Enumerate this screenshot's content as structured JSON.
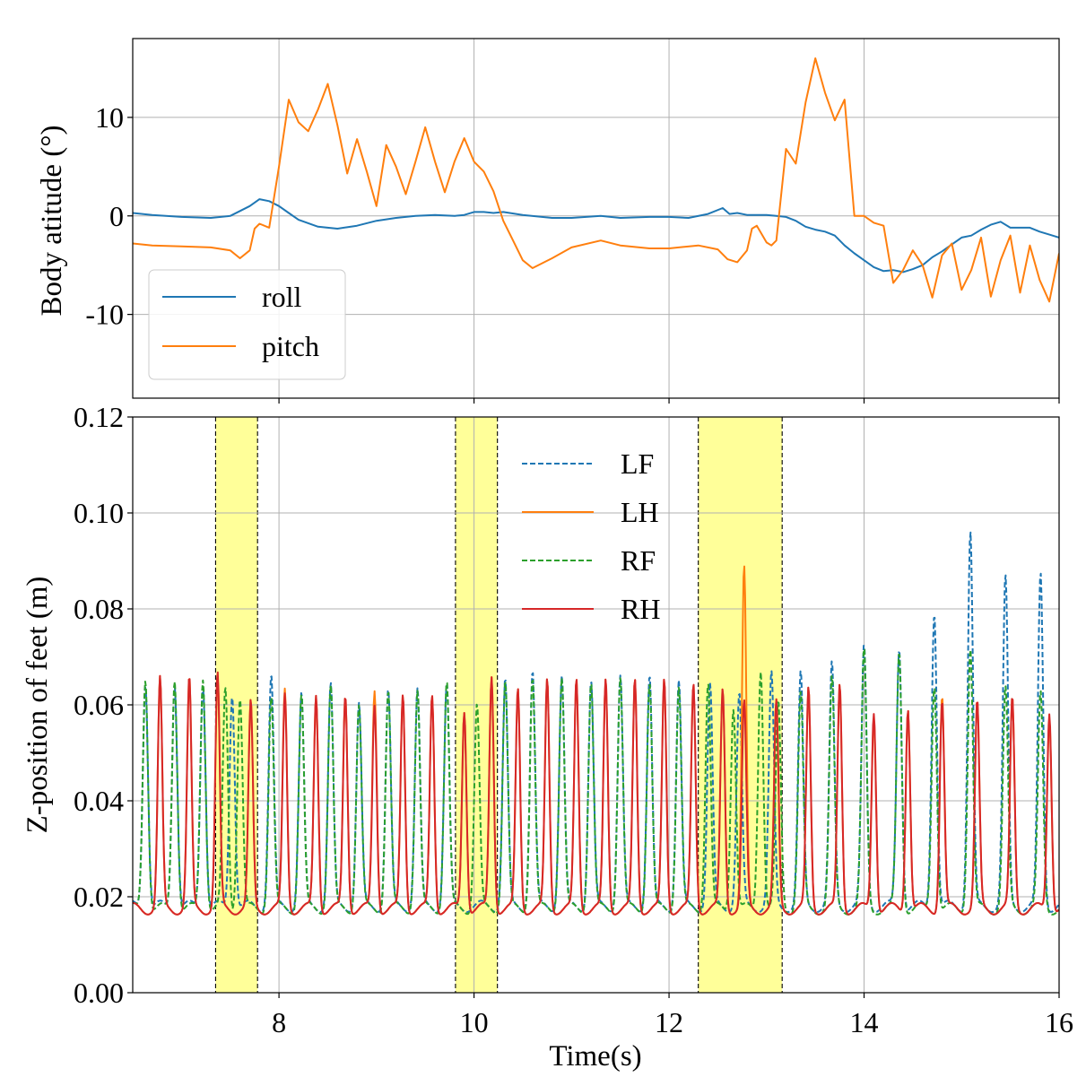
{
  "chart_data": [
    {
      "type": "line",
      "id": "attitude",
      "ylabel": "Body atitude (°)",
      "xlabel": "",
      "xlim": [
        6.5,
        16
      ],
      "ylim": [
        -18.5,
        18
      ],
      "xticks": [
        8,
        10,
        12,
        14,
        16
      ],
      "yticks": [
        -10,
        0,
        10
      ],
      "ytick_labels": [
        "-10",
        "0",
        "10"
      ],
      "grid": true,
      "legend": "lower-left",
      "series": [
        {
          "name": "roll",
          "color": "#1f77b4",
          "style": "solid",
          "x": [
            6.5,
            6.7,
            7.0,
            7.3,
            7.5,
            7.6,
            7.7,
            7.8,
            7.9,
            8.0,
            8.1,
            8.2,
            8.4,
            8.6,
            8.8,
            9.0,
            9.2,
            9.4,
            9.6,
            9.8,
            9.9,
            10.0,
            10.1,
            10.2,
            10.3,
            10.5,
            10.8,
            11.0,
            11.3,
            11.5,
            11.8,
            12.0,
            12.2,
            12.4,
            12.55,
            12.62,
            12.7,
            12.8,
            12.9,
            13.0,
            13.1,
            13.2,
            13.3,
            13.4,
            13.5,
            13.6,
            13.7,
            13.8,
            13.9,
            14.0,
            14.1,
            14.2,
            14.3,
            14.4,
            14.5,
            14.6,
            14.7,
            14.8,
            14.9,
            15.0,
            15.1,
            15.2,
            15.3,
            15.4,
            15.5,
            15.6,
            15.7,
            15.8,
            15.9,
            16.0
          ],
          "y": [
            0.3,
            0.1,
            -0.1,
            -0.2,
            0.0,
            0.5,
            1.0,
            1.7,
            1.5,
            1.0,
            0.3,
            -0.4,
            -1.1,
            -1.3,
            -1.0,
            -0.5,
            -0.2,
            0.0,
            0.1,
            0.0,
            0.1,
            0.4,
            0.4,
            0.3,
            0.4,
            0.1,
            -0.2,
            -0.2,
            0.0,
            -0.2,
            -0.1,
            -0.1,
            -0.2,
            0.2,
            0.8,
            0.2,
            0.3,
            0.1,
            0.1,
            0.1,
            0.0,
            -0.1,
            -0.5,
            -1.1,
            -1.4,
            -1.6,
            -2.0,
            -3.0,
            -3.8,
            -4.5,
            -5.2,
            -5.6,
            -5.5,
            -5.7,
            -5.4,
            -5.0,
            -4.2,
            -3.6,
            -2.9,
            -2.2,
            -2.0,
            -1.4,
            -0.9,
            -0.6,
            -1.2,
            -1.2,
            -1.2,
            -1.6,
            -1.9,
            -2.2
          ]
        },
        {
          "name": "pitch",
          "color": "#ff7f0e",
          "style": "solid",
          "x": [
            6.5,
            6.7,
            7.0,
            7.3,
            7.5,
            7.6,
            7.7,
            7.75,
            7.8,
            7.9,
            8.0,
            8.1,
            8.2,
            8.3,
            8.4,
            8.5,
            8.6,
            8.7,
            8.8,
            8.9,
            9.0,
            9.1,
            9.2,
            9.3,
            9.4,
            9.5,
            9.6,
            9.7,
            9.8,
            9.9,
            10.0,
            10.1,
            10.2,
            10.3,
            10.4,
            10.5,
            10.6,
            10.8,
            11.0,
            11.3,
            11.5,
            11.8,
            12.0,
            12.3,
            12.5,
            12.6,
            12.7,
            12.8,
            12.85,
            12.9,
            13.0,
            13.05,
            13.1,
            13.2,
            13.3,
            13.4,
            13.5,
            13.6,
            13.7,
            13.8,
            13.9,
            14.0,
            14.1,
            14.2,
            14.3,
            14.4,
            14.5,
            14.6,
            14.7,
            14.8,
            14.9,
            15.0,
            15.1,
            15.2,
            15.3,
            15.4,
            15.5,
            15.6,
            15.7,
            15.8,
            15.9,
            16.0
          ],
          "y": [
            -2.8,
            -3.0,
            -3.1,
            -3.2,
            -3.5,
            -4.3,
            -3.5,
            -1.3,
            -0.8,
            -1.2,
            5.0,
            11.8,
            9.5,
            8.6,
            10.8,
            13.4,
            9.2,
            4.3,
            7.8,
            4.5,
            1.0,
            7.2,
            5.0,
            2.2,
            5.5,
            9.0,
            5.5,
            2.4,
            5.5,
            7.9,
            5.5,
            4.5,
            2.5,
            -0.5,
            -2.5,
            -4.5,
            -5.3,
            -4.3,
            -3.2,
            -2.5,
            -3.0,
            -3.3,
            -3.3,
            -3.0,
            -3.4,
            -4.4,
            -4.7,
            -3.5,
            -1.3,
            -1.0,
            -2.7,
            -3.0,
            -2.5,
            6.8,
            5.3,
            11.5,
            16.0,
            12.5,
            9.7,
            11.8,
            0.0,
            0.0,
            -0.7,
            -1.0,
            -6.8,
            -5.5,
            -3.5,
            -5.0,
            -8.3,
            -4.0,
            -2.8,
            -7.5,
            -5.5,
            -2.2,
            -8.2,
            -4.5,
            -2.0,
            -7.8,
            -3.0,
            -6.5,
            -8.7,
            -3.8
          ]
        }
      ]
    },
    {
      "type": "line",
      "id": "feet",
      "ylabel": "Z-position of feet (m)",
      "xlabel": "Time(s)",
      "xlim": [
        6.5,
        16
      ],
      "ylim": [
        0.0,
        0.12
      ],
      "xticks": [
        8,
        10,
        12,
        14,
        16
      ],
      "yticks": [
        0.0,
        0.02,
        0.04,
        0.06,
        0.08,
        0.1,
        0.12
      ],
      "ytick_labels": [
        "0.00",
        "0.02",
        "0.04",
        "0.06",
        "0.08",
        "0.10",
        "0.12"
      ],
      "grid": true,
      "legend": "upper-center",
      "shaded_regions": [
        [
          7.35,
          7.78
        ],
        [
          9.81,
          10.24
        ],
        [
          12.3,
          13.16
        ]
      ],
      "shade_color": "#ffff99",
      "series": [
        {
          "name": "LF",
          "color": "#1f77b4",
          "style": "dashed",
          "base": 0.018,
          "width": 0.1,
          "peaks": [
            [
              6.63,
              0.065
            ],
            [
              6.93,
              0.065
            ],
            [
              7.22,
              0.065
            ],
            [
              7.52,
              0.063
            ],
            [
              7.92,
              0.066
            ],
            [
              8.23,
              0.062
            ],
            [
              8.53,
              0.064
            ],
            [
              8.82,
              0.06
            ],
            [
              9.12,
              0.063
            ],
            [
              9.42,
              0.063
            ],
            [
              9.72,
              0.064
            ],
            [
              10.32,
              0.065
            ],
            [
              10.6,
              0.067
            ],
            [
              10.9,
              0.066
            ],
            [
              11.2,
              0.065
            ],
            [
              11.5,
              0.066
            ],
            [
              11.8,
              0.066
            ],
            [
              12.1,
              0.065
            ],
            [
              12.42,
              0.064
            ],
            [
              12.72,
              0.062
            ],
            [
              13.05,
              0.066
            ],
            [
              13.35,
              0.066
            ],
            [
              13.67,
              0.068
            ],
            [
              14.0,
              0.072
            ],
            [
              14.36,
              0.072
            ],
            [
              14.72,
              0.08
            ],
            [
              15.09,
              0.096
            ],
            [
              15.45,
              0.086
            ],
            [
              15.81,
              0.087
            ]
          ]
        },
        {
          "name": "LH",
          "color": "#ff7f0e",
          "style": "solid",
          "base": 0.0175,
          "width": 0.085,
          "peaks": [
            [
              6.78,
              0.065
            ],
            [
              7.08,
              0.065
            ],
            [
              7.37,
              0.065
            ],
            [
              7.71,
              0.06
            ],
            [
              8.06,
              0.063
            ],
            [
              8.38,
              0.062
            ],
            [
              8.68,
              0.062
            ],
            [
              8.98,
              0.063
            ],
            [
              9.27,
              0.062
            ],
            [
              9.57,
              0.062
            ],
            [
              9.9,
              0.059
            ],
            [
              10.18,
              0.066
            ],
            [
              10.45,
              0.063
            ],
            [
              10.75,
              0.065
            ],
            [
              11.05,
              0.065
            ],
            [
              11.35,
              0.065
            ],
            [
              11.65,
              0.065
            ],
            [
              11.95,
              0.065
            ],
            [
              12.25,
              0.064
            ],
            [
              12.55,
              0.063
            ],
            [
              12.77,
              0.088
            ],
            [
              13.1,
              0.06
            ],
            [
              13.43,
              0.063
            ],
            [
              13.75,
              0.064
            ],
            [
              14.1,
              0.058
            ],
            [
              14.45,
              0.06
            ],
            [
              14.8,
              0.062
            ],
            [
              15.16,
              0.06
            ],
            [
              15.52,
              0.061
            ],
            [
              15.9,
              0.058
            ]
          ]
        },
        {
          "name": "RF",
          "color": "#2ca02c",
          "style": "dashed",
          "base": 0.0175,
          "width": 0.1,
          "peaks": [
            [
              6.63,
              0.066
            ],
            [
              6.93,
              0.066
            ],
            [
              7.22,
              0.066
            ],
            [
              7.45,
              0.063
            ],
            [
              7.6,
              0.062
            ],
            [
              7.92,
              0.062
            ],
            [
              8.23,
              0.062
            ],
            [
              8.53,
              0.064
            ],
            [
              8.82,
              0.06
            ],
            [
              9.12,
              0.063
            ],
            [
              9.42,
              0.063
            ],
            [
              9.72,
              0.065
            ],
            [
              10.03,
              0.06
            ],
            [
              10.32,
              0.065
            ],
            [
              10.6,
              0.066
            ],
            [
              10.9,
              0.066
            ],
            [
              11.2,
              0.065
            ],
            [
              11.5,
              0.066
            ],
            [
              11.8,
              0.065
            ],
            [
              12.1,
              0.064
            ],
            [
              12.4,
              0.065
            ],
            [
              12.66,
              0.06
            ],
            [
              12.94,
              0.068
            ],
            [
              13.12,
              0.06
            ],
            [
              13.35,
              0.062
            ],
            [
              13.67,
              0.065
            ],
            [
              14.0,
              0.071
            ],
            [
              14.36,
              0.071
            ],
            [
              14.72,
              0.065
            ],
            [
              15.09,
              0.072
            ],
            [
              15.45,
              0.063
            ],
            [
              15.81,
              0.062
            ]
          ]
        },
        {
          "name": "RH",
          "color": "#d62728",
          "style": "solid",
          "base": 0.0175,
          "width": 0.085,
          "peaks": [
            [
              6.78,
              0.065
            ],
            [
              7.08,
              0.065
            ],
            [
              7.37,
              0.066
            ],
            [
              7.71,
              0.06
            ],
            [
              8.06,
              0.062
            ],
            [
              8.38,
              0.062
            ],
            [
              8.68,
              0.062
            ],
            [
              8.98,
              0.06
            ],
            [
              9.27,
              0.062
            ],
            [
              9.57,
              0.062
            ],
            [
              9.9,
              0.059
            ],
            [
              10.18,
              0.066
            ],
            [
              10.45,
              0.063
            ],
            [
              10.75,
              0.065
            ],
            [
              11.05,
              0.065
            ],
            [
              11.35,
              0.065
            ],
            [
              11.65,
              0.065
            ],
            [
              11.95,
              0.065
            ],
            [
              12.25,
              0.064
            ],
            [
              12.55,
              0.063
            ],
            [
              12.77,
              0.06
            ],
            [
              13.1,
              0.06
            ],
            [
              13.43,
              0.063
            ],
            [
              13.75,
              0.064
            ],
            [
              14.1,
              0.059
            ],
            [
              14.45,
              0.06
            ],
            [
              14.8,
              0.061
            ],
            [
              15.16,
              0.06
            ],
            [
              15.52,
              0.061
            ],
            [
              15.9,
              0.059
            ]
          ]
        }
      ]
    }
  ]
}
